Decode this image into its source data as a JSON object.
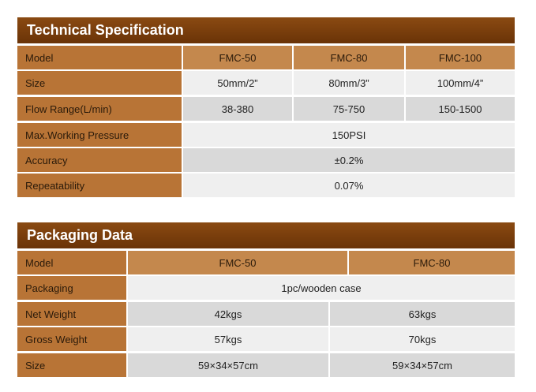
{
  "technical": {
    "title": "Technical Specification",
    "header": [
      "Model",
      "FMC-50",
      "FMC-80",
      "FMC-100"
    ],
    "rows": [
      [
        "Size",
        "50mm/2”",
        "80mm/3”",
        "100mm/4”"
      ],
      [
        "Flow Range(L/min)",
        "38-380",
        "75-750",
        "150-1500"
      ],
      [
        "Max.Working Pressure",
        "150PSI"
      ],
      [
        "Accuracy",
        "±0.2%"
      ],
      [
        "Repeatability",
        "0.07%"
      ]
    ]
  },
  "packaging": {
    "title": "Packaging Data",
    "header": [
      "Model",
      "FMC-50",
      "FMC-80"
    ],
    "rows": [
      [
        "Packaging",
        "1pc/wooden case"
      ],
      [
        "Net Weight",
        "42kgs",
        "63kgs"
      ],
      [
        "Gross Weight",
        "57kgs",
        "70kgs"
      ],
      [
        "Size",
        "59×34×57cm",
        "59×34×57cm"
      ]
    ]
  }
}
